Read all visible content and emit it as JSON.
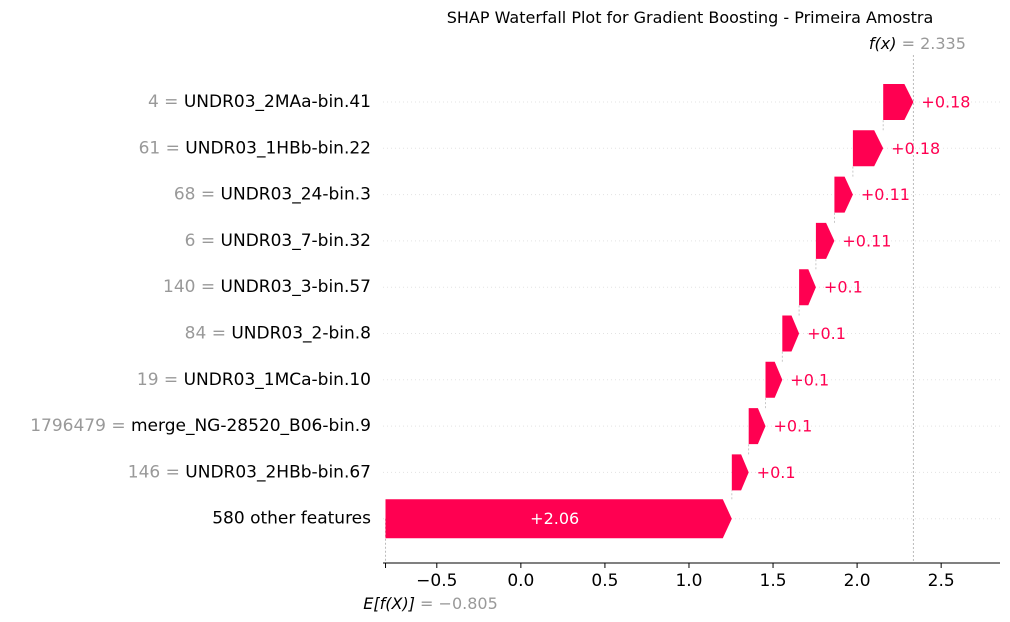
{
  "chart_data": {
    "type": "waterfall",
    "title": "SHAP Waterfall Plot for Gradient Boosting - Primeira Amostra",
    "fx_label_prefix": "f(x)",
    "fx_value": "2.335",
    "fx_number": 2.335,
    "ex_label_prefix": "E[f(X)]",
    "ex_value": "−0.805",
    "ex_number": -0.805,
    "xlim": [
      -0.82,
      2.85
    ],
    "ticks": [
      -0.5,
      0.0,
      0.5,
      1.0,
      1.5,
      2.0,
      2.5
    ],
    "tick_labels": [
      "−0.5",
      "0.0",
      "0.5",
      "1.0",
      "1.5",
      "2.0",
      "2.5"
    ],
    "bars": [
      {
        "value_text": "4",
        "feature": "UNDR03_2MAa-bin.41",
        "start": 2.155,
        "shap": 0.18,
        "label": "+0.18"
      },
      {
        "value_text": "61",
        "feature": "UNDR03_1HBb-bin.22",
        "start": 1.975,
        "shap": 0.18,
        "label": "+0.18"
      },
      {
        "value_text": "68",
        "feature": "UNDR03_24-bin.3",
        "start": 1.865,
        "shap": 0.11,
        "label": "+0.11"
      },
      {
        "value_text": "6",
        "feature": "UNDR03_7-bin.32",
        "start": 1.755,
        "shap": 0.11,
        "label": "+0.11"
      },
      {
        "value_text": "140",
        "feature": "UNDR03_3-bin.57",
        "start": 1.655,
        "shap": 0.1,
        "label": "+0.1"
      },
      {
        "value_text": "84",
        "feature": "UNDR03_2-bin.8",
        "start": 1.555,
        "shap": 0.1,
        "label": "+0.1"
      },
      {
        "value_text": "19",
        "feature": "UNDR03_1MCa-bin.10",
        "start": 1.455,
        "shap": 0.1,
        "label": "+0.1"
      },
      {
        "value_text": "1796479",
        "feature": "merge_NG-28520_B06-bin.9",
        "start": 1.355,
        "shap": 0.1,
        "label": "+0.1"
      },
      {
        "value_text": "146",
        "feature": "UNDR03_2HBb-bin.67",
        "start": 1.255,
        "shap": 0.1,
        "label": "+0.1"
      },
      {
        "value_text": "",
        "feature": "580 other features",
        "start": -0.805,
        "shap": 2.06,
        "label": "+2.06"
      }
    ],
    "colors": {
      "positive": "#ff0051",
      "label_gray": "#999999",
      "text": "#000000",
      "grid": "#cccccc"
    }
  }
}
